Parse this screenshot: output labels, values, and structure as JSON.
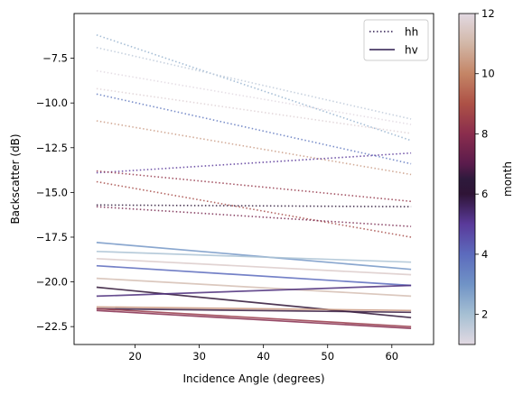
{
  "chart_data": {
    "type": "line",
    "title": "",
    "xlabel": "Incidence Angle (degrees)",
    "ylabel": "Backscatter (dB)",
    "xlim": [
      10.5,
      66.5
    ],
    "ylim": [
      -23.5,
      -5.0
    ],
    "xticks": [
      20,
      30,
      40,
      50,
      60
    ],
    "yticks": [
      -22.5,
      -20.0,
      -17.5,
      -15.0,
      -12.5,
      -10.0,
      -7.5
    ],
    "ytick_labels": [
      "−22.5",
      "−20.0",
      "−17.5",
      "−15.0",
      "−12.5",
      "−10.0",
      "−7.5"
    ],
    "xtick_labels": [
      "20",
      "30",
      "40",
      "50",
      "60"
    ],
    "legend": {
      "placement": "top-right",
      "entries": [
        {
          "label": "hh",
          "style": "dotted",
          "color": "#2d1a4f"
        },
        {
          "label": "hv",
          "style": "solid",
          "color": "#2d1a4f"
        }
      ]
    },
    "colorbar": {
      "label": "month",
      "min": 1,
      "max": 12,
      "ticks": [
        2,
        4,
        6,
        8,
        10,
        12
      ],
      "tick_labels": [
        "2",
        "4",
        "6",
        "8",
        "10",
        "12"
      ],
      "colormap": "twilight",
      "stops": [
        {
          "v": 1,
          "color": "#e2d9e2"
        },
        {
          "v": 2,
          "color": "#a6c0d3"
        },
        {
          "v": 3,
          "color": "#7093c6"
        },
        {
          "v": 4,
          "color": "#5c6bbd"
        },
        {
          "v": 5,
          "color": "#5a3a9a"
        },
        {
          "v": 6,
          "color": "#2f1436"
        },
        {
          "v": 6.5,
          "color": "#2e1a3c"
        },
        {
          "v": 7,
          "color": "#5a1b4c"
        },
        {
          "v": 8,
          "color": "#8a2d4d"
        },
        {
          "v": 9,
          "color": "#ad5146"
        },
        {
          "v": 10,
          "color": "#c48566"
        },
        {
          "v": 11,
          "color": "#d2b7a7"
        },
        {
          "v": 12,
          "color": "#e2d9e2"
        }
      ]
    },
    "series": [
      {
        "pol": "hh",
        "month": 2.3,
        "x": [
          14,
          63
        ],
        "y": [
          -6.2,
          -12.1
        ]
      },
      {
        "pol": "hh",
        "month": 1.6,
        "x": [
          14,
          63
        ],
        "y": [
          -6.9,
          -10.9
        ]
      },
      {
        "pol": "hh",
        "month": 12.0,
        "x": [
          14,
          63
        ],
        "y": [
          -8.2,
          -11.2
        ]
      },
      {
        "pol": "hh",
        "month": 11.8,
        "x": [
          14,
          63
        ],
        "y": [
          -9.2,
          -11.7
        ]
      },
      {
        "pol": "hh",
        "month": 3.6,
        "x": [
          14,
          63
        ],
        "y": [
          -9.5,
          -13.4
        ]
      },
      {
        "pol": "hh",
        "month": 10.5,
        "x": [
          14,
          63
        ],
        "y": [
          -11.0,
          -14.0
        ]
      },
      {
        "pol": "hh",
        "month": 5.0,
        "x": [
          14,
          63
        ],
        "y": [
          -13.9,
          -12.8
        ]
      },
      {
        "pol": "hh",
        "month": 8.3,
        "x": [
          14,
          63
        ],
        "y": [
          -13.8,
          -15.5
        ]
      },
      {
        "pol": "hh",
        "month": 8.8,
        "x": [
          14,
          63
        ],
        "y": [
          -14.4,
          -17.5
        ]
      },
      {
        "pol": "hh",
        "month": 6.3,
        "x": [
          14,
          63
        ],
        "y": [
          -15.7,
          -15.8
        ]
      },
      {
        "pol": "hh",
        "month": 7.6,
        "x": [
          14,
          63
        ],
        "y": [
          -15.8,
          -16.9
        ]
      },
      {
        "pol": "hv",
        "month": 2.9,
        "x": [
          14,
          63
        ],
        "y": [
          -17.8,
          -19.3
        ]
      },
      {
        "pol": "hv",
        "month": 1.9,
        "x": [
          14,
          63
        ],
        "y": [
          -18.3,
          -18.9
        ]
      },
      {
        "pol": "hv",
        "month": 11.6,
        "x": [
          14,
          63
        ],
        "y": [
          -18.7,
          -19.6
        ]
      },
      {
        "pol": "hv",
        "month": 4.0,
        "x": [
          14,
          63
        ],
        "y": [
          -19.1,
          -20.2
        ]
      },
      {
        "pol": "hv",
        "month": 11.2,
        "x": [
          14,
          63
        ],
        "y": [
          -19.8,
          -20.8
        ]
      },
      {
        "pol": "hv",
        "month": 6.0,
        "x": [
          14,
          63
        ],
        "y": [
          -20.3,
          -22.0
        ]
      },
      {
        "pol": "hv",
        "month": 5.3,
        "x": [
          14,
          63
        ],
        "y": [
          -20.8,
          -20.2
        ]
      },
      {
        "pol": "hv",
        "month": 10.4,
        "x": [
          14,
          63
        ],
        "y": [
          -21.4,
          -21.6
        ]
      },
      {
        "pol": "hv",
        "month": 6.6,
        "x": [
          14,
          63
        ],
        "y": [
          -21.5,
          -21.7
        ]
      },
      {
        "pol": "hv",
        "month": 8.4,
        "x": [
          14,
          63
        ],
        "y": [
          -21.5,
          -22.5
        ]
      },
      {
        "pol": "hv",
        "month": 7.9,
        "x": [
          14,
          63
        ],
        "y": [
          -21.6,
          -22.6
        ]
      }
    ]
  }
}
